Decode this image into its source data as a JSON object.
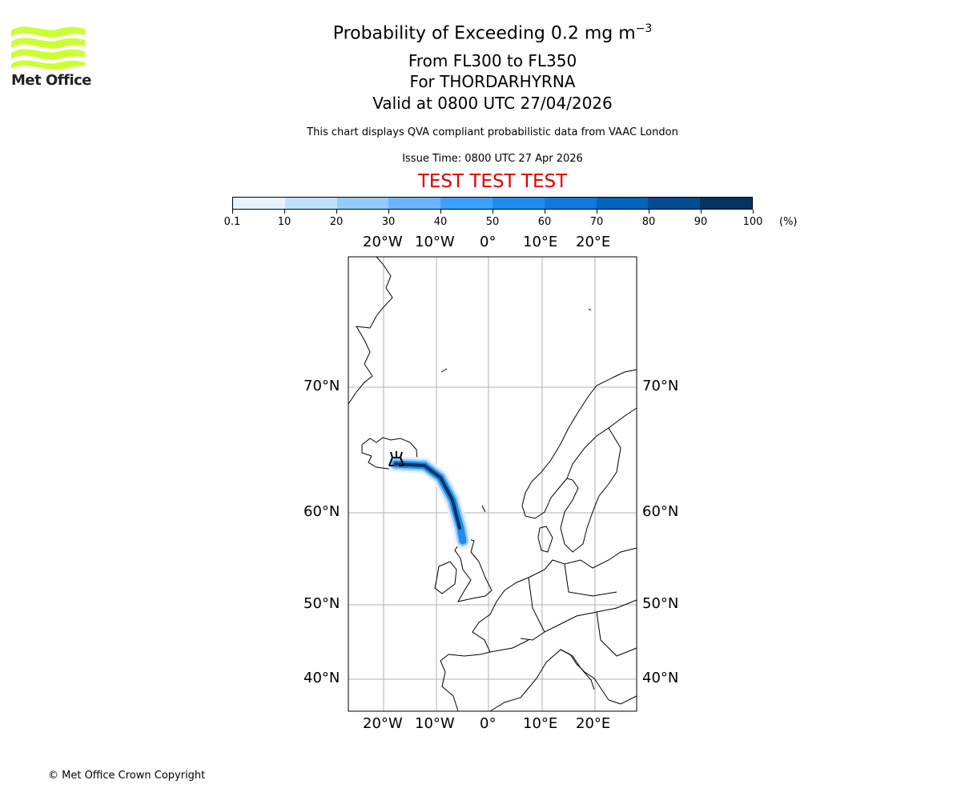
{
  "logo": {
    "text": "Met Office",
    "color": "#ccff33"
  },
  "header": {
    "title": "Probability of Exceeding 0.2 mg m",
    "title_sup": "−3",
    "levels": "From FL300 to FL350",
    "volcano": "For THORDARHYRNA",
    "valid": "Valid at 0800 UTC 27/04/2026",
    "note": "This chart displays QVA compliant probabilistic data from VAAC London",
    "issue": "Issue Time: 0800 UTC 27 Apr 2026",
    "test": "TEST TEST TEST"
  },
  "colorbar": {
    "ticks": [
      "0.1",
      "10",
      "20",
      "30",
      "40",
      "50",
      "60",
      "70",
      "80",
      "90",
      "100"
    ],
    "unit": "(%)",
    "colors": [
      "#e6f2fd",
      "#bfe0fc",
      "#95cafd",
      "#6bb5fd",
      "#3ea0fd",
      "#1e8cec",
      "#0f78dc",
      "#0063bc",
      "#044b92",
      "#02345f"
    ]
  },
  "map": {
    "lon_labels": [
      "20°W",
      "10°W",
      "0°",
      "10°E",
      "20°E"
    ],
    "lat_labels": [
      "70°N",
      "60°N",
      "50°N",
      "40°N"
    ],
    "plume_max_percent": 100
  },
  "footer": {
    "copyright": "© Met Office Crown Copyright"
  }
}
